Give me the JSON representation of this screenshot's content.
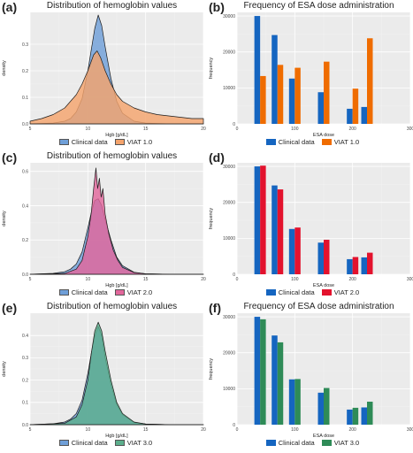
{
  "chart_data": [
    {
      "panel": "(a)",
      "type": "area",
      "title": "Distribution of hemoglobin values",
      "xlabel": "Hgb [g/dL]",
      "ylabel": "density",
      "xlim": [
        5,
        20
      ],
      "ylim": [
        0,
        0.42
      ],
      "xticks": [
        "5",
        "10",
        "15",
        "20"
      ],
      "yticks": [
        "0.0",
        "0.1",
        "0.2",
        "0.3"
      ],
      "grid": true,
      "legend": "bottom",
      "series": [
        {
          "name": "Clinical data",
          "color": "#6f9fd8",
          "x": [
            5,
            7,
            8,
            8.5,
            9,
            9.5,
            10,
            10.3,
            10.6,
            10.9,
            11.2,
            11.5,
            12,
            12.5,
            13,
            14,
            15,
            17,
            20
          ],
          "y": [
            0,
            0.003,
            0.01,
            0.02,
            0.045,
            0.095,
            0.2,
            0.28,
            0.36,
            0.41,
            0.37,
            0.29,
            0.17,
            0.085,
            0.04,
            0.01,
            0.003,
            0,
            0
          ]
        },
        {
          "name": "VIAT 1.0",
          "color": "#f4a36c",
          "x": [
            5,
            6,
            7,
            8,
            9,
            9.5,
            10,
            10.5,
            10.8,
            11.1,
            11.5,
            12,
            12.5,
            13,
            14,
            15,
            16,
            17,
            18,
            19,
            20
          ],
          "y": [
            0.01,
            0.02,
            0.035,
            0.06,
            0.11,
            0.15,
            0.2,
            0.26,
            0.275,
            0.25,
            0.2,
            0.15,
            0.11,
            0.085,
            0.06,
            0.045,
            0.035,
            0.03,
            0.025,
            0.02,
            0.02
          ]
        }
      ]
    },
    {
      "panel": "(b)",
      "type": "bar",
      "title": "Frequency of ESA dose administration",
      "xlabel": "ESA dose",
      "ylabel": "frequency",
      "xlim": [
        0,
        300
      ],
      "ylim": [
        0,
        31000
      ],
      "xticks": [
        "0",
        "100",
        "200",
        "300"
      ],
      "yticks": [
        "0",
        "10000",
        "20000",
        "30000"
      ],
      "grid": true,
      "legend": "bottom",
      "x": [
        40,
        70,
        100,
        150,
        200,
        225
      ],
      "series": [
        {
          "name": "Clinical data",
          "color": "#1565c0",
          "values": [
            30000,
            24700,
            12600,
            8800,
            4200,
            4700
          ]
        },
        {
          "name": "VIAT 1.0",
          "color": "#ef6c00",
          "values": [
            13300,
            16400,
            15600,
            17300,
            9800,
            23800
          ]
        }
      ]
    },
    {
      "panel": "(c)",
      "type": "area",
      "title": "Distribution of hemoglobin values",
      "xlabel": "Hgb [g/dL]",
      "ylabel": "density",
      "xlim": [
        5,
        20
      ],
      "ylim": [
        0,
        0.65
      ],
      "xticks": [
        "5",
        "10",
        "15",
        "20"
      ],
      "yticks": [
        "0.0",
        "0.2",
        "0.4",
        "0.6"
      ],
      "grid": true,
      "legend": "bottom",
      "series": [
        {
          "name": "Clinical data",
          "color": "#6f9fd8",
          "x": [
            5,
            7,
            8,
            8.5,
            9,
            9.5,
            10,
            10.3,
            10.6,
            10.9,
            11.2,
            11.5,
            12,
            12.5,
            13,
            14,
            15,
            17,
            20
          ],
          "y": [
            0,
            0.005,
            0.015,
            0.03,
            0.06,
            0.13,
            0.27,
            0.36,
            0.43,
            0.44,
            0.4,
            0.32,
            0.2,
            0.1,
            0.05,
            0.012,
            0.003,
            0,
            0
          ]
        },
        {
          "name": "VIAT 2.0",
          "color": "#e2679b",
          "x": [
            5,
            8,
            9,
            9.5,
            10,
            10.3,
            10.5,
            10.7,
            10.85,
            11,
            11.15,
            11.3,
            11.5,
            11.8,
            12.2,
            12.6,
            13,
            14,
            15,
            17,
            20
          ],
          "y": [
            0,
            0.005,
            0.03,
            0.08,
            0.22,
            0.36,
            0.5,
            0.62,
            0.5,
            0.56,
            0.45,
            0.5,
            0.35,
            0.24,
            0.14,
            0.08,
            0.04,
            0.01,
            0.003,
            0,
            0
          ]
        }
      ]
    },
    {
      "panel": "(d)",
      "type": "bar",
      "title": "",
      "xlabel": "ESA dose",
      "ylabel": "frequency",
      "xlim": [
        0,
        300
      ],
      "ylim": [
        0,
        31000
      ],
      "xticks": [
        "0",
        "100",
        "200",
        "300"
      ],
      "yticks": [
        "0",
        "10000",
        "20000",
        "30000"
      ],
      "grid": true,
      "legend": "bottom",
      "x": [
        40,
        70,
        100,
        150,
        200,
        225
      ],
      "series": [
        {
          "name": "Clinical data",
          "color": "#1565c0",
          "values": [
            30000,
            24700,
            12600,
            8800,
            4200,
            4700
          ]
        },
        {
          "name": "VIAT 2.0",
          "color": "#e3122d",
          "values": [
            30200,
            23600,
            13000,
            9600,
            4800,
            6000
          ]
        }
      ]
    },
    {
      "panel": "(e)",
      "type": "area",
      "title": "Distribution of hemoglobin values",
      "xlabel": "Hgb [g/dL]",
      "ylabel": "density",
      "xlim": [
        5,
        20
      ],
      "ylim": [
        0,
        0.5
      ],
      "xticks": [
        "5",
        "10",
        "15",
        "20"
      ],
      "yticks": [
        "0.0",
        "0.1",
        "0.2",
        "0.3",
        "0.4"
      ],
      "grid": true,
      "legend": "bottom",
      "series": [
        {
          "name": "Clinical data",
          "color": "#6f9fd8",
          "x": [
            5,
            7,
            8,
            8.5,
            9,
            9.5,
            10,
            10.3,
            10.6,
            10.9,
            11.2,
            11.5,
            12,
            12.5,
            13,
            14,
            15,
            17,
            20
          ],
          "y": [
            0,
            0.004,
            0.012,
            0.025,
            0.05,
            0.11,
            0.23,
            0.32,
            0.4,
            0.44,
            0.4,
            0.3,
            0.18,
            0.09,
            0.045,
            0.01,
            0.003,
            0,
            0
          ]
        },
        {
          "name": "VIAT 3.0",
          "color": "#5cae8c",
          "x": [
            5,
            8,
            9,
            9.5,
            10,
            10.3,
            10.6,
            10.9,
            11.2,
            11.5,
            12,
            12.5,
            13,
            14,
            15,
            17,
            20
          ],
          "y": [
            0,
            0.006,
            0.035,
            0.09,
            0.2,
            0.32,
            0.42,
            0.46,
            0.42,
            0.33,
            0.2,
            0.1,
            0.05,
            0.012,
            0.003,
            0,
            0
          ]
        }
      ]
    },
    {
      "panel": "(f)",
      "type": "bar",
      "title": "Frequency of ESA dose administration",
      "xlabel": "ESA dose",
      "ylabel": "frequency",
      "xlim": [
        0,
        300
      ],
      "ylim": [
        0,
        31000
      ],
      "xticks": [
        "0",
        "100",
        "200",
        "300"
      ],
      "yticks": [
        "0",
        "10000",
        "20000",
        "30000"
      ],
      "grid": true,
      "legend": "bottom",
      "x": [
        40,
        70,
        100,
        150,
        200,
        225
      ],
      "series": [
        {
          "name": "Clinical data",
          "color": "#1565c0",
          "values": [
            30000,
            24800,
            12600,
            8900,
            4200,
            4800
          ]
        },
        {
          "name": "VIAT 3.0",
          "color": "#2e8b57",
          "values": [
            29300,
            22900,
            12700,
            10200,
            4700,
            6400
          ]
        }
      ]
    }
  ]
}
